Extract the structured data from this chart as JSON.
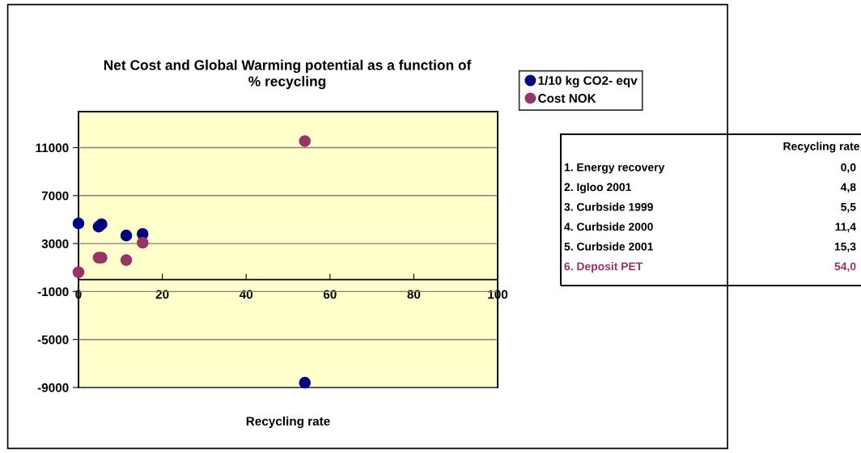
{
  "chart_data": {
    "type": "scatter",
    "title": "Net Cost and Global Warming potential as a function of\n% recycling",
    "xlabel": "Recycling rate",
    "x": [
      0,
      4.8,
      5.5,
      11.4,
      15.3,
      54.0
    ],
    "series": [
      {
        "name": "1/10 kg CO2- eqv",
        "color": "#000080",
        "values": [
          4680,
          4410,
          4610,
          3670,
          3800,
          -8600
        ]
      },
      {
        "name": "Cost NOK",
        "color": "#993366",
        "values": [
          610,
          1820,
          1820,
          1620,
          3070,
          11540
        ]
      }
    ],
    "xlim": [
      0,
      100
    ],
    "xticks": [
      0,
      20,
      40,
      60,
      80,
      100
    ],
    "ylim": [
      -9000,
      14000
    ],
    "yticks": [
      -9000,
      -5000,
      -1000,
      3000,
      7000,
      11000
    ],
    "grid": "y",
    "legend": "right",
    "marker": "circle",
    "annotations": [
      "Recycling rate",
      "1. Energy recovery",
      "0,0",
      "2. Igloo 2001",
      "4,8",
      "3. Curbside 1999",
      "5,5",
      "4. Curbside 2000",
      "11,4",
      "5. Curbside 2001",
      "15,3",
      "6. Deposit PET",
      "54,0"
    ]
  }
}
